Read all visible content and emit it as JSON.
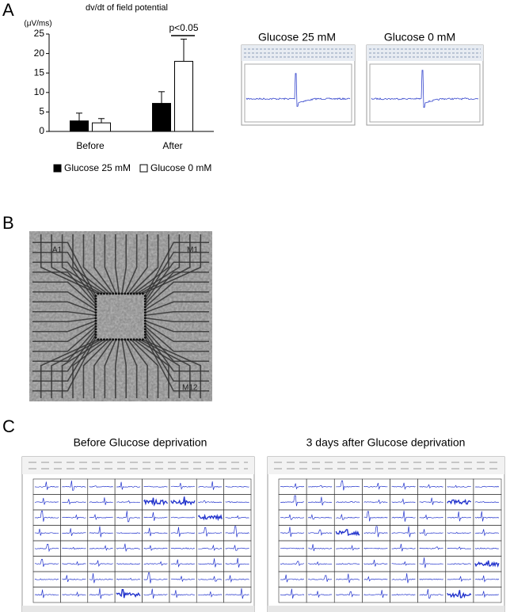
{
  "panel_labels": [
    "A",
    "B",
    "C"
  ],
  "chart_data": {
    "type": "bar",
    "title": "dv/dt of field potential",
    "y_label": "(μV/ms)",
    "categories": [
      "Before",
      "After"
    ],
    "series": [
      {
        "name": "Glucose 25 mM",
        "color": "#000000",
        "values": [
          2.7,
          7.2
        ],
        "errors": [
          2.0,
          3.0
        ]
      },
      {
        "name": "Glucose 0 mM",
        "color": "#ffffff",
        "values": [
          2.2,
          18.0
        ],
        "errors": [
          1.1,
          5.7
        ]
      }
    ],
    "ylim": [
      0,
      25
    ],
    "yticks": [
      0,
      5,
      10,
      15,
      20,
      25
    ],
    "annotation": "p<0.05",
    "legend": "bottom"
  },
  "traces": {
    "titles": [
      "Glucose 25 mM",
      "Glucose 0 mM"
    ]
  },
  "electrode_image": {
    "labels": [
      "A1",
      "M1",
      "M12"
    ]
  },
  "recordings": {
    "titles": [
      "Before Glucose deprivation",
      "3 days after Glucose deprivation"
    ]
  }
}
